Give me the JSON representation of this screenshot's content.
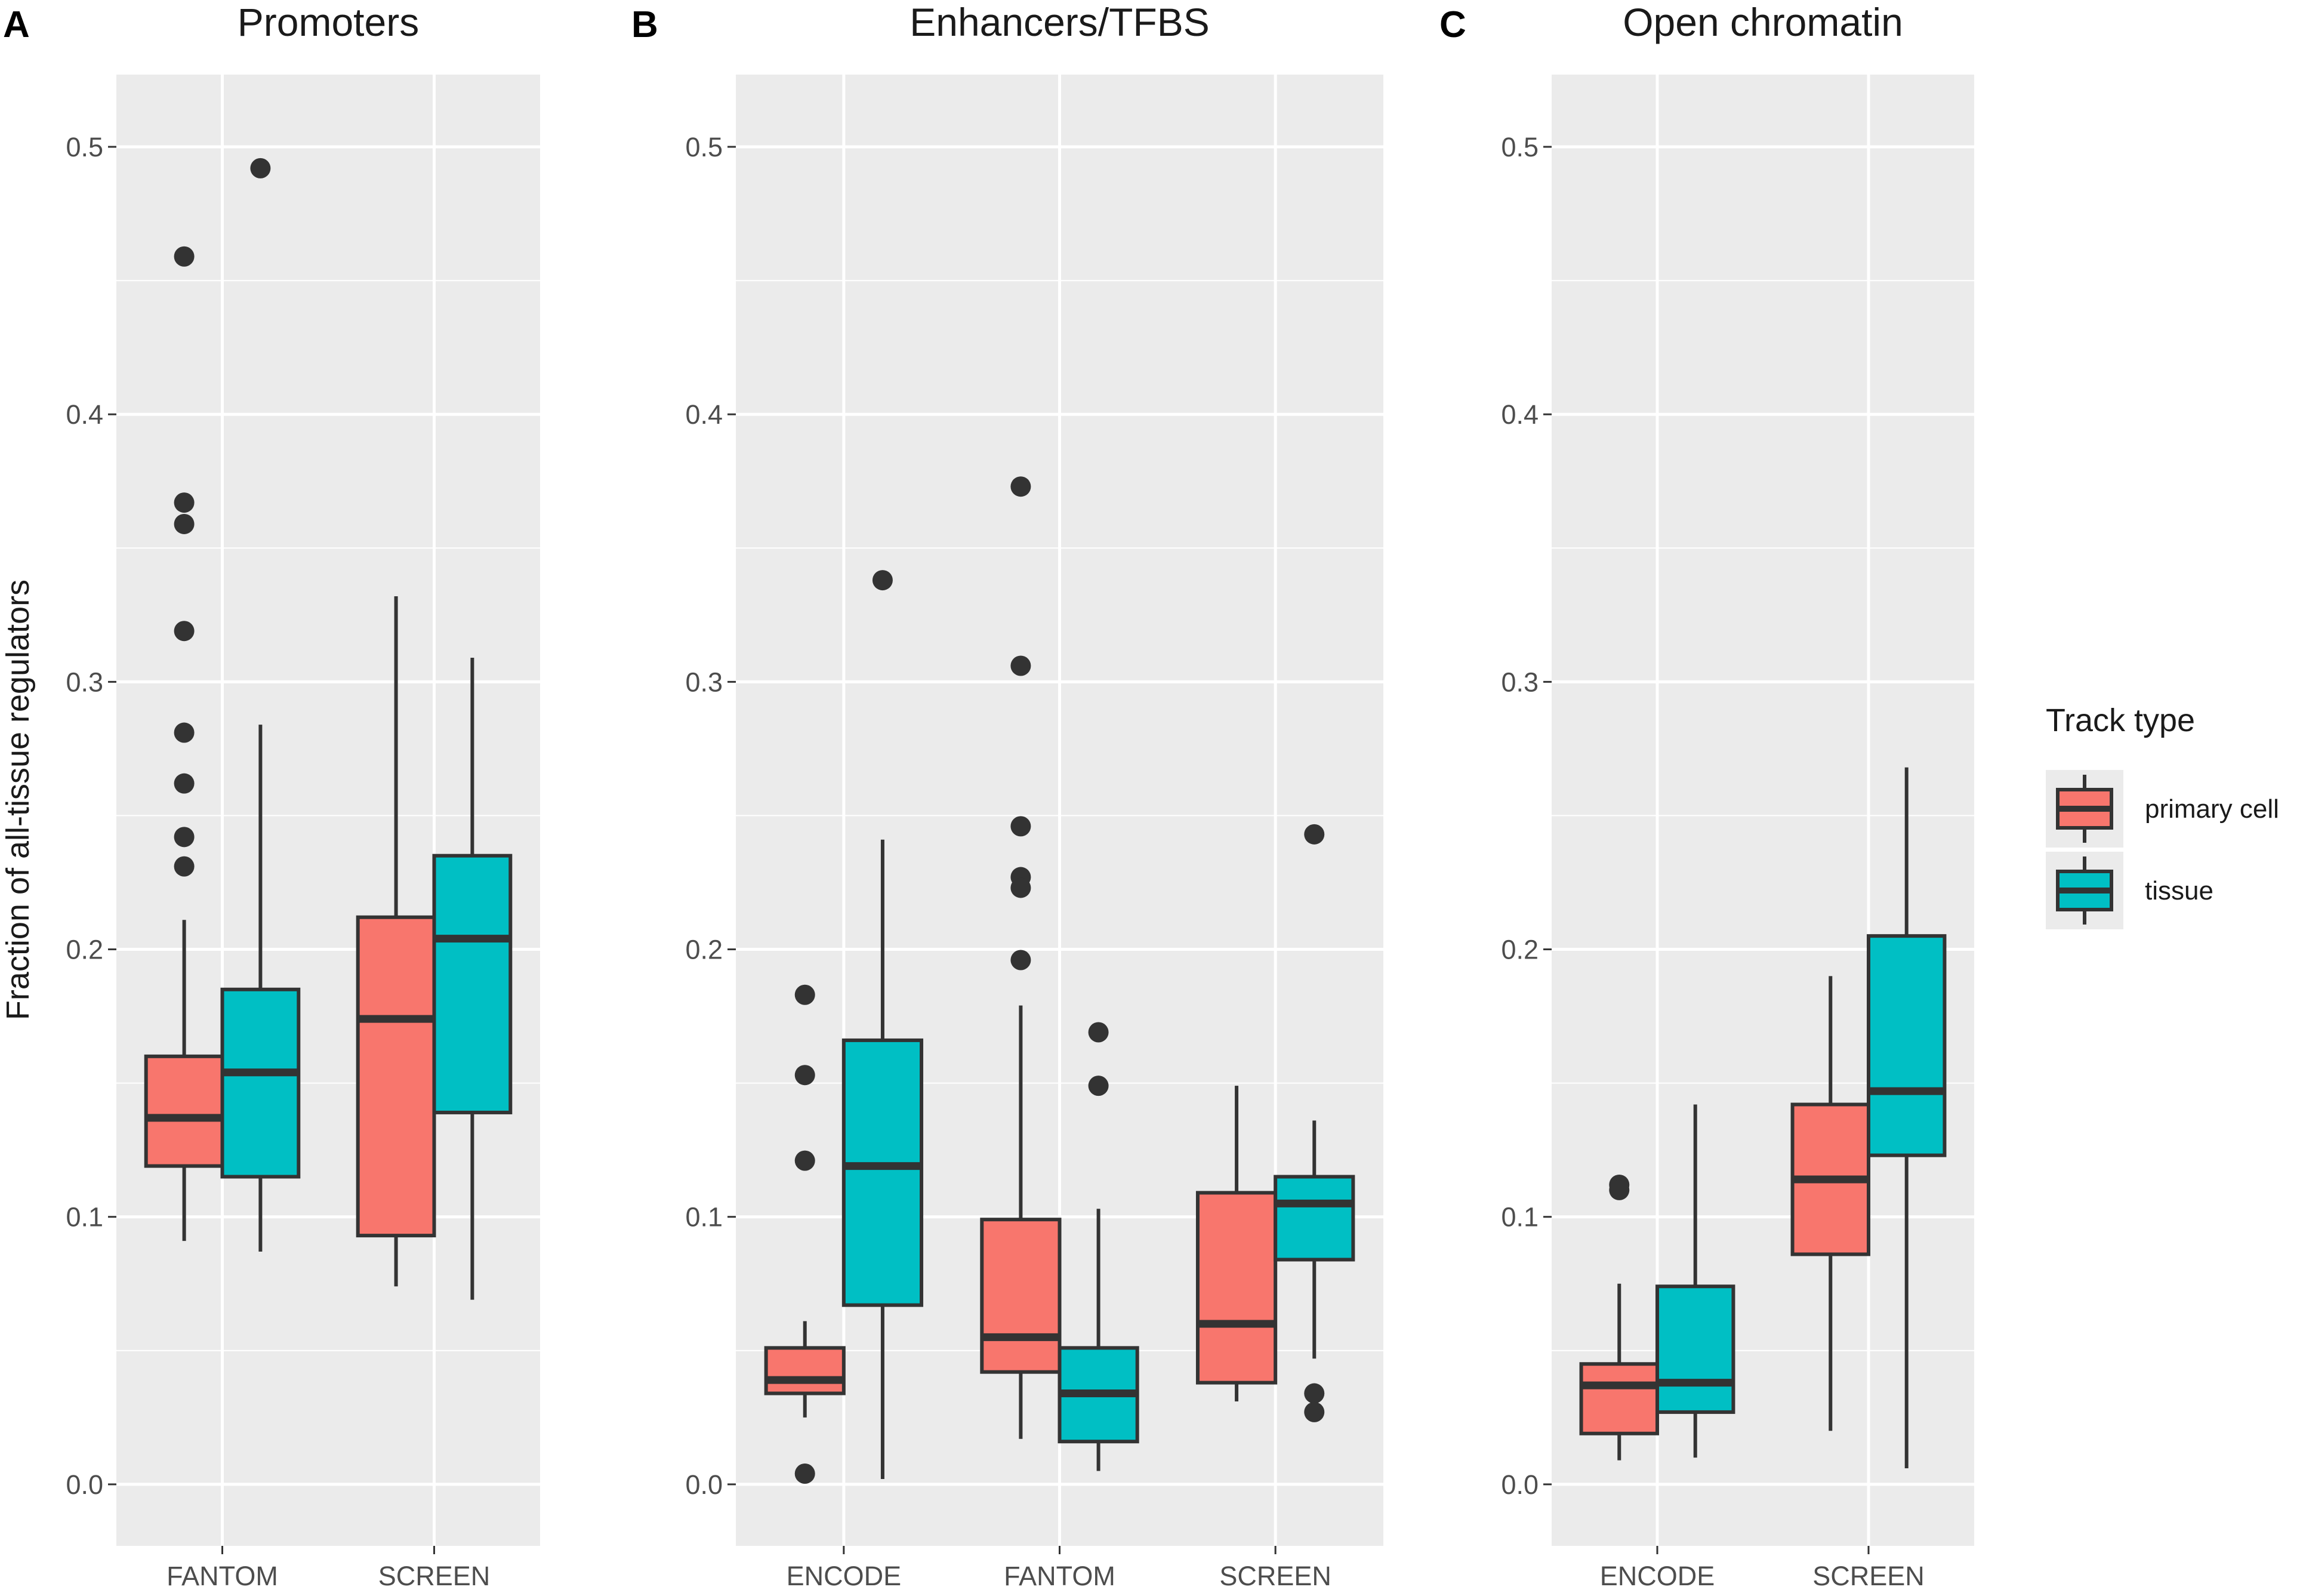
{
  "figure": {
    "y_axis_title": "Fraction of all-tissue regulators",
    "legend": {
      "title": "Track type",
      "items": [
        {
          "label": "primary cell",
          "color": "#F8766D"
        },
        {
          "label": "tissue",
          "color": "#00BFC4"
        }
      ]
    }
  },
  "chart_data": [
    {
      "type": "box",
      "letter": "A",
      "title": "Promoters",
      "categories": [
        "FANTOM",
        "SCREEN"
      ],
      "ylim": [
        -0.023,
        0.527
      ],
      "yticks": [
        "0.0",
        "0.1",
        "0.2",
        "0.3",
        "0.4",
        "0.5"
      ],
      "series": [
        {
          "name": "primary cell",
          "color": "#F8766D",
          "boxes": [
            {
              "category": "FANTOM",
              "whisker_low": 0.091,
              "q1": 0.119,
              "median": 0.137,
              "q3": 0.16,
              "whisker_high": 0.211,
              "outliers": [
                0.459,
                0.367,
                0.359,
                0.319,
                0.281,
                0.262,
                0.242,
                0.231
              ]
            },
            {
              "category": "SCREEN",
              "whisker_low": 0.074,
              "q1": 0.093,
              "median": 0.174,
              "q3": 0.212,
              "whisker_high": 0.332,
              "outliers": []
            }
          ]
        },
        {
          "name": "tissue",
          "color": "#00BFC4",
          "boxes": [
            {
              "category": "FANTOM",
              "whisker_low": 0.087,
              "q1": 0.115,
              "median": 0.154,
              "q3": 0.185,
              "whisker_high": 0.284,
              "outliers": [
                0.492
              ]
            },
            {
              "category": "SCREEN",
              "whisker_low": 0.069,
              "q1": 0.139,
              "median": 0.204,
              "q3": 0.235,
              "whisker_high": 0.309,
              "outliers": []
            }
          ]
        }
      ]
    },
    {
      "type": "box",
      "letter": "B",
      "title": "Enhancers/TFBS",
      "categories": [
        "ENCODE",
        "FANTOM",
        "SCREEN"
      ],
      "ylim": [
        -0.023,
        0.527
      ],
      "yticks": [
        "0.0",
        "0.1",
        "0.2",
        "0.3",
        "0.4",
        "0.5"
      ],
      "series": [
        {
          "name": "primary cell",
          "color": "#F8766D",
          "boxes": [
            {
              "category": "ENCODE",
              "whisker_low": 0.025,
              "q1": 0.034,
              "median": 0.039,
              "q3": 0.051,
              "whisker_high": 0.061,
              "outliers": [
                0.183,
                0.153,
                0.121,
                0.004
              ]
            },
            {
              "category": "FANTOM",
              "whisker_low": 0.017,
              "q1": 0.042,
              "median": 0.055,
              "q3": 0.099,
              "whisker_high": 0.179,
              "outliers": [
                0.373,
                0.306,
                0.246,
                0.227,
                0.223,
                0.196
              ]
            },
            {
              "category": "SCREEN",
              "whisker_low": 0.031,
              "q1": 0.038,
              "median": 0.06,
              "q3": 0.109,
              "whisker_high": 0.149,
              "outliers": []
            }
          ]
        },
        {
          "name": "tissue",
          "color": "#00BFC4",
          "boxes": [
            {
              "category": "ENCODE",
              "whisker_low": 0.002,
              "q1": 0.067,
              "median": 0.119,
              "q3": 0.166,
              "whisker_high": 0.241,
              "outliers": [
                0.338
              ]
            },
            {
              "category": "FANTOM",
              "whisker_low": 0.005,
              "q1": 0.016,
              "median": 0.034,
              "q3": 0.051,
              "whisker_high": 0.103,
              "outliers": [
                0.169,
                0.149
              ]
            },
            {
              "category": "SCREEN",
              "whisker_low": 0.047,
              "q1": 0.084,
              "median": 0.105,
              "q3": 0.115,
              "whisker_high": 0.136,
              "outliers": [
                0.243,
                0.034,
                0.027
              ]
            }
          ]
        }
      ]
    },
    {
      "type": "box",
      "letter": "C",
      "title": "Open chromatin",
      "categories": [
        "ENCODE",
        "SCREEN"
      ],
      "ylim": [
        -0.023,
        0.527
      ],
      "yticks": [
        "0.0",
        "0.1",
        "0.2",
        "0.3",
        "0.4",
        "0.5"
      ],
      "series": [
        {
          "name": "primary cell",
          "color": "#F8766D",
          "boxes": [
            {
              "category": "ENCODE",
              "whisker_low": 0.009,
              "q1": 0.019,
              "median": 0.037,
              "q3": 0.045,
              "whisker_high": 0.075,
              "outliers": [
                0.112,
                0.11
              ]
            },
            {
              "category": "SCREEN",
              "whisker_low": 0.02,
              "q1": 0.086,
              "median": 0.114,
              "q3": 0.142,
              "whisker_high": 0.19,
              "outliers": []
            }
          ]
        },
        {
          "name": "tissue",
          "color": "#00BFC4",
          "boxes": [
            {
              "category": "ENCODE",
              "whisker_low": 0.01,
              "q1": 0.027,
              "median": 0.038,
              "q3": 0.074,
              "whisker_high": 0.142,
              "outliers": []
            },
            {
              "category": "SCREEN",
              "whisker_low": 0.006,
              "q1": 0.123,
              "median": 0.147,
              "q3": 0.205,
              "whisker_high": 0.268,
              "outliers": []
            }
          ]
        }
      ]
    }
  ]
}
